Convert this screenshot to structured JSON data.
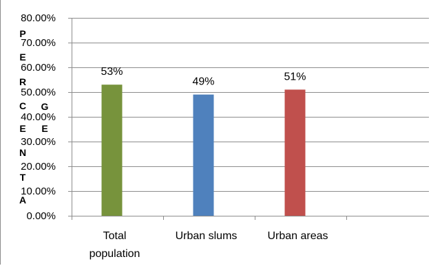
{
  "chart_data": {
    "type": "bar",
    "categories": [
      "Total population",
      "Urban slums",
      "Urban areas"
    ],
    "category_lines": [
      [
        "Total",
        "population"
      ],
      [
        "Urban slums"
      ],
      [
        "Urban areas"
      ]
    ],
    "values": [
      53,
      49,
      51
    ],
    "data_labels": [
      "53%",
      "49%",
      "51%"
    ],
    "colors": [
      "#77933C",
      "#4F81BD",
      "#C0504D"
    ],
    "ylabel": "PERCENTAGE",
    "ylim": [
      0,
      80
    ],
    "yticks": [
      0,
      10,
      20,
      30,
      40,
      50,
      60,
      70,
      80
    ],
    "ytick_labels": [
      "0.00%",
      "10.00%",
      "20.00%",
      "30.00%",
      "40.00%",
      "50.00%",
      "60.00%",
      "70.00%",
      "80.00%"
    ],
    "grid": true,
    "legend": "none"
  }
}
